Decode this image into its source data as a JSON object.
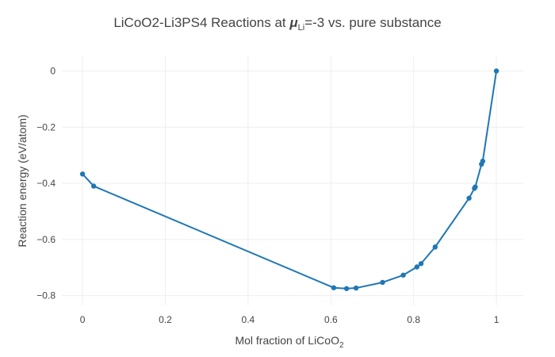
{
  "chart_data": {
    "type": "line",
    "title_prefix": "LiCoO2-Li3PS4 Reactions at ",
    "title_mu": "μ",
    "title_mu_sub": "Li",
    "title_suffix": "=-3 vs. pure substance",
    "xlabel_prefix": "Mol fraction of LiCoO",
    "xlabel_sub": "2",
    "ylabel": "Reaction energy (eV/atom)",
    "xlim": [
      -0.05,
      1.065
    ],
    "ylim": [
      -0.835,
      0.055
    ],
    "x_ticks": [
      0,
      0.2,
      0.4,
      0.6,
      0.8,
      1
    ],
    "x_tick_labels": [
      "0",
      "0.2",
      "0.4",
      "0.6",
      "0.8",
      "1"
    ],
    "y_ticks": [
      0,
      -0.2,
      -0.4,
      -0.6,
      -0.8
    ],
    "y_tick_labels": [
      "0",
      "−0.2",
      "−0.4",
      "−0.6",
      "−0.8"
    ],
    "grid": true,
    "color": "#1f77b4",
    "series": [
      {
        "x": [
          0,
          0.027,
          0.607,
          0.638,
          0.661,
          0.725,
          0.775,
          0.808,
          0.818,
          0.852,
          0.934,
          0.947,
          0.949,
          0.964,
          0.967,
          1.0
        ],
        "y": [
          -0.367,
          -0.41,
          -0.772,
          -0.775,
          -0.773,
          -0.753,
          -0.727,
          -0.698,
          -0.686,
          -0.627,
          -0.453,
          -0.418,
          -0.413,
          -0.332,
          -0.321,
          0
        ]
      }
    ]
  }
}
